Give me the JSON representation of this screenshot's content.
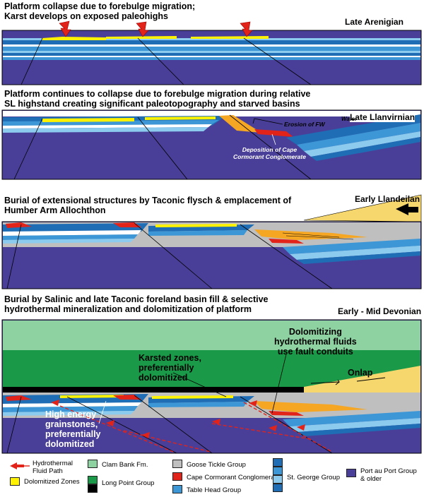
{
  "panels": [
    {
      "title_line1": "Platform collapse due to forebulge migration;",
      "title_line2": "Karst develops on exposed paleohighs",
      "age": "Late Arenigian"
    },
    {
      "title_line1": "Platform continues to collapse due to forebulge migration during relative",
      "title_line2": "SL highstand creating significant paleotopography and starved basins",
      "age": "Late Llanvirnian"
    },
    {
      "title_line1": "Burial of extensional structures by Taconic flysch & emplacement of",
      "title_line2": "Humber Arm Allochthon",
      "age": "Early Llandeilan"
    },
    {
      "title_line1": "Burial by Salinic and late Taconic foreland basin fill & selective",
      "title_line2": "hydrothermal mineralization and dolomitization of platform",
      "age": "Early - Mid Devonian"
    }
  ],
  "annotations": {
    "erosion": "Erosion of FW",
    "water": "Water",
    "deposition_l1": "Deposition of Cape",
    "deposition_l2": "Cormorant Conglomerate",
    "dolo_l1": "Dolomitizing",
    "dolo_l2": "hydrothermal fluids",
    "dolo_l3": "use fault conduits",
    "karst_l1": "Karsted zones,",
    "karst_l2": "preferentially",
    "karst_l3": "dolomitized",
    "onlap": "Onlap",
    "hi_l1": "High energy",
    "hi_l2": "grainstones,",
    "hi_l3": "preferentially",
    "hi_l4": "dolomitized"
  },
  "legend": {
    "fluid_l1": "Hydrothermal",
    "fluid_l2": "Fluid Path",
    "dolomitized": "Dolomitized Zones",
    "clam_bank": "Clam Bank Fm.",
    "long_point": "Long Point Group",
    "goose_tickle": "Goose Tickle Group",
    "cape_cormorant": "Cape Cormorant Conglomerate",
    "table_head": "Table Head Group",
    "st_george": "St. George Group",
    "port_l1": "Port au Port Group",
    "port_l2": "& older"
  },
  "colors": {
    "purple": "#4a3f98",
    "blue_dark": "#1f6db5",
    "blue_mid": "#3d97d6",
    "blue_light": "#8ccbee",
    "white": "#ffffff",
    "yellow": "#fff200",
    "red": "#e2231a",
    "orange": "#f5a623",
    "gray": "#bfbfbf",
    "green": "#1a9a48",
    "green_light": "#8fd2a2",
    "black": "#000000"
  }
}
